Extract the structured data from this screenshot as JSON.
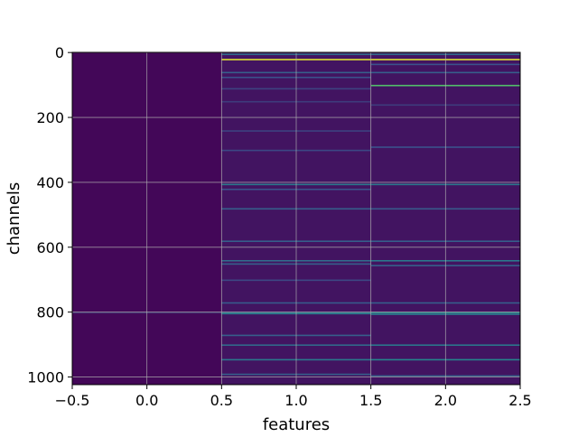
{
  "chart_data": {
    "type": "heatmap",
    "xlabel": "features",
    "ylabel": "channels",
    "x_ticks": [
      "−0.5",
      "0.0",
      "0.5",
      "1.0",
      "1.5",
      "2.0",
      "2.5"
    ],
    "y_ticks": [
      "0",
      "200",
      "400",
      "600",
      "800",
      "1000"
    ],
    "xlim": [
      -0.5,
      2.5
    ],
    "ylim": [
      1023.5,
      -0.5
    ],
    "y_axis_inverted": true,
    "grid": true,
    "colormap": "viridis",
    "n_rows": 1024,
    "n_cols": 3,
    "columns": [
      {
        "feature": 0,
        "base_value": 0.02,
        "highlights": [
          {
            "channel": 800,
            "value": 0.15
          }
        ]
      },
      {
        "feature": 1,
        "base_value": 0.06,
        "highlights": [
          {
            "channel": 4,
            "value": 0.35
          },
          {
            "channel": 20,
            "value": 0.95
          },
          {
            "channel": 60,
            "value": 0.3
          },
          {
            "channel": 75,
            "value": 0.25
          },
          {
            "channel": 110,
            "value": 0.2
          },
          {
            "channel": 150,
            "value": 0.18
          },
          {
            "channel": 240,
            "value": 0.2
          },
          {
            "channel": 300,
            "value": 0.22
          },
          {
            "channel": 405,
            "value": 0.4
          },
          {
            "channel": 420,
            "value": 0.25
          },
          {
            "channel": 480,
            "value": 0.3
          },
          {
            "channel": 580,
            "value": 0.3
          },
          {
            "channel": 640,
            "value": 0.35
          },
          {
            "channel": 650,
            "value": 0.3
          },
          {
            "channel": 700,
            "value": 0.22
          },
          {
            "channel": 770,
            "value": 0.28
          },
          {
            "channel": 800,
            "value": 0.45
          },
          {
            "channel": 803,
            "value": 0.4
          },
          {
            "channel": 870,
            "value": 0.3
          },
          {
            "channel": 900,
            "value": 0.35
          },
          {
            "channel": 945,
            "value": 0.4
          },
          {
            "channel": 990,
            "value": 0.3
          }
        ]
      },
      {
        "feature": 2,
        "base_value": 0.06,
        "highlights": [
          {
            "channel": 4,
            "value": 0.35
          },
          {
            "channel": 20,
            "value": 0.95
          },
          {
            "channel": 35,
            "value": 0.25
          },
          {
            "channel": 60,
            "value": 0.3
          },
          {
            "channel": 100,
            "value": 0.7
          },
          {
            "channel": 160,
            "value": 0.18
          },
          {
            "channel": 290,
            "value": 0.25
          },
          {
            "channel": 405,
            "value": 0.4
          },
          {
            "channel": 480,
            "value": 0.28
          },
          {
            "channel": 580,
            "value": 0.3
          },
          {
            "channel": 640,
            "value": 0.4
          },
          {
            "channel": 655,
            "value": 0.3
          },
          {
            "channel": 770,
            "value": 0.3
          },
          {
            "channel": 800,
            "value": 0.5
          },
          {
            "channel": 805,
            "value": 0.4
          },
          {
            "channel": 900,
            "value": 0.4
          },
          {
            "channel": 945,
            "value": 0.45
          },
          {
            "channel": 995,
            "value": 0.3
          }
        ]
      }
    ]
  }
}
